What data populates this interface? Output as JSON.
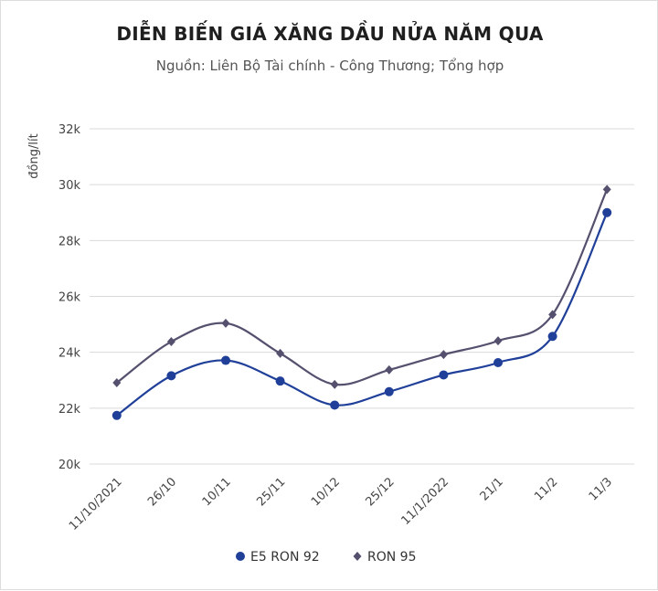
{
  "chart_data": {
    "type": "line",
    "title": "DIỄN BIẾN GIÁ XĂNG DẦU NỬA NĂM QUA",
    "subtitle": "Nguồn: Liên Bộ Tài chính - Công Thương; Tổng hợp",
    "ylabel": "đồng/lít",
    "xlabel": "",
    "categories": [
      "11/10/2021",
      "26/10",
      "10/11",
      "25/11",
      "10/12",
      "25/12",
      "11/1/2022",
      "21/1",
      "11/2",
      "11/3"
    ],
    "ylim": [
      20000,
      32000
    ],
    "yticks": [
      20000,
      22000,
      24000,
      26000,
      28000,
      30000,
      32000
    ],
    "ytick_labels": [
      "20k",
      "22k",
      "24k",
      "26k",
      "28k",
      "30k",
      "32k"
    ],
    "grid": true,
    "legend": "bottom",
    "smooth": true,
    "series": [
      {
        "name": "E5 RON 92",
        "color": "#1f3f99",
        "marker": "circle",
        "values": [
          21740,
          23160,
          23710,
          22970,
          22110,
          22590,
          23190,
          23630,
          24570,
          29000
        ]
      },
      {
        "name": "RON 95",
        "color": "#54506e",
        "marker": "diamond",
        "values": [
          22910,
          24380,
          25040,
          23960,
          22850,
          23370,
          23920,
          24410,
          25350,
          29830
        ]
      }
    ]
  }
}
